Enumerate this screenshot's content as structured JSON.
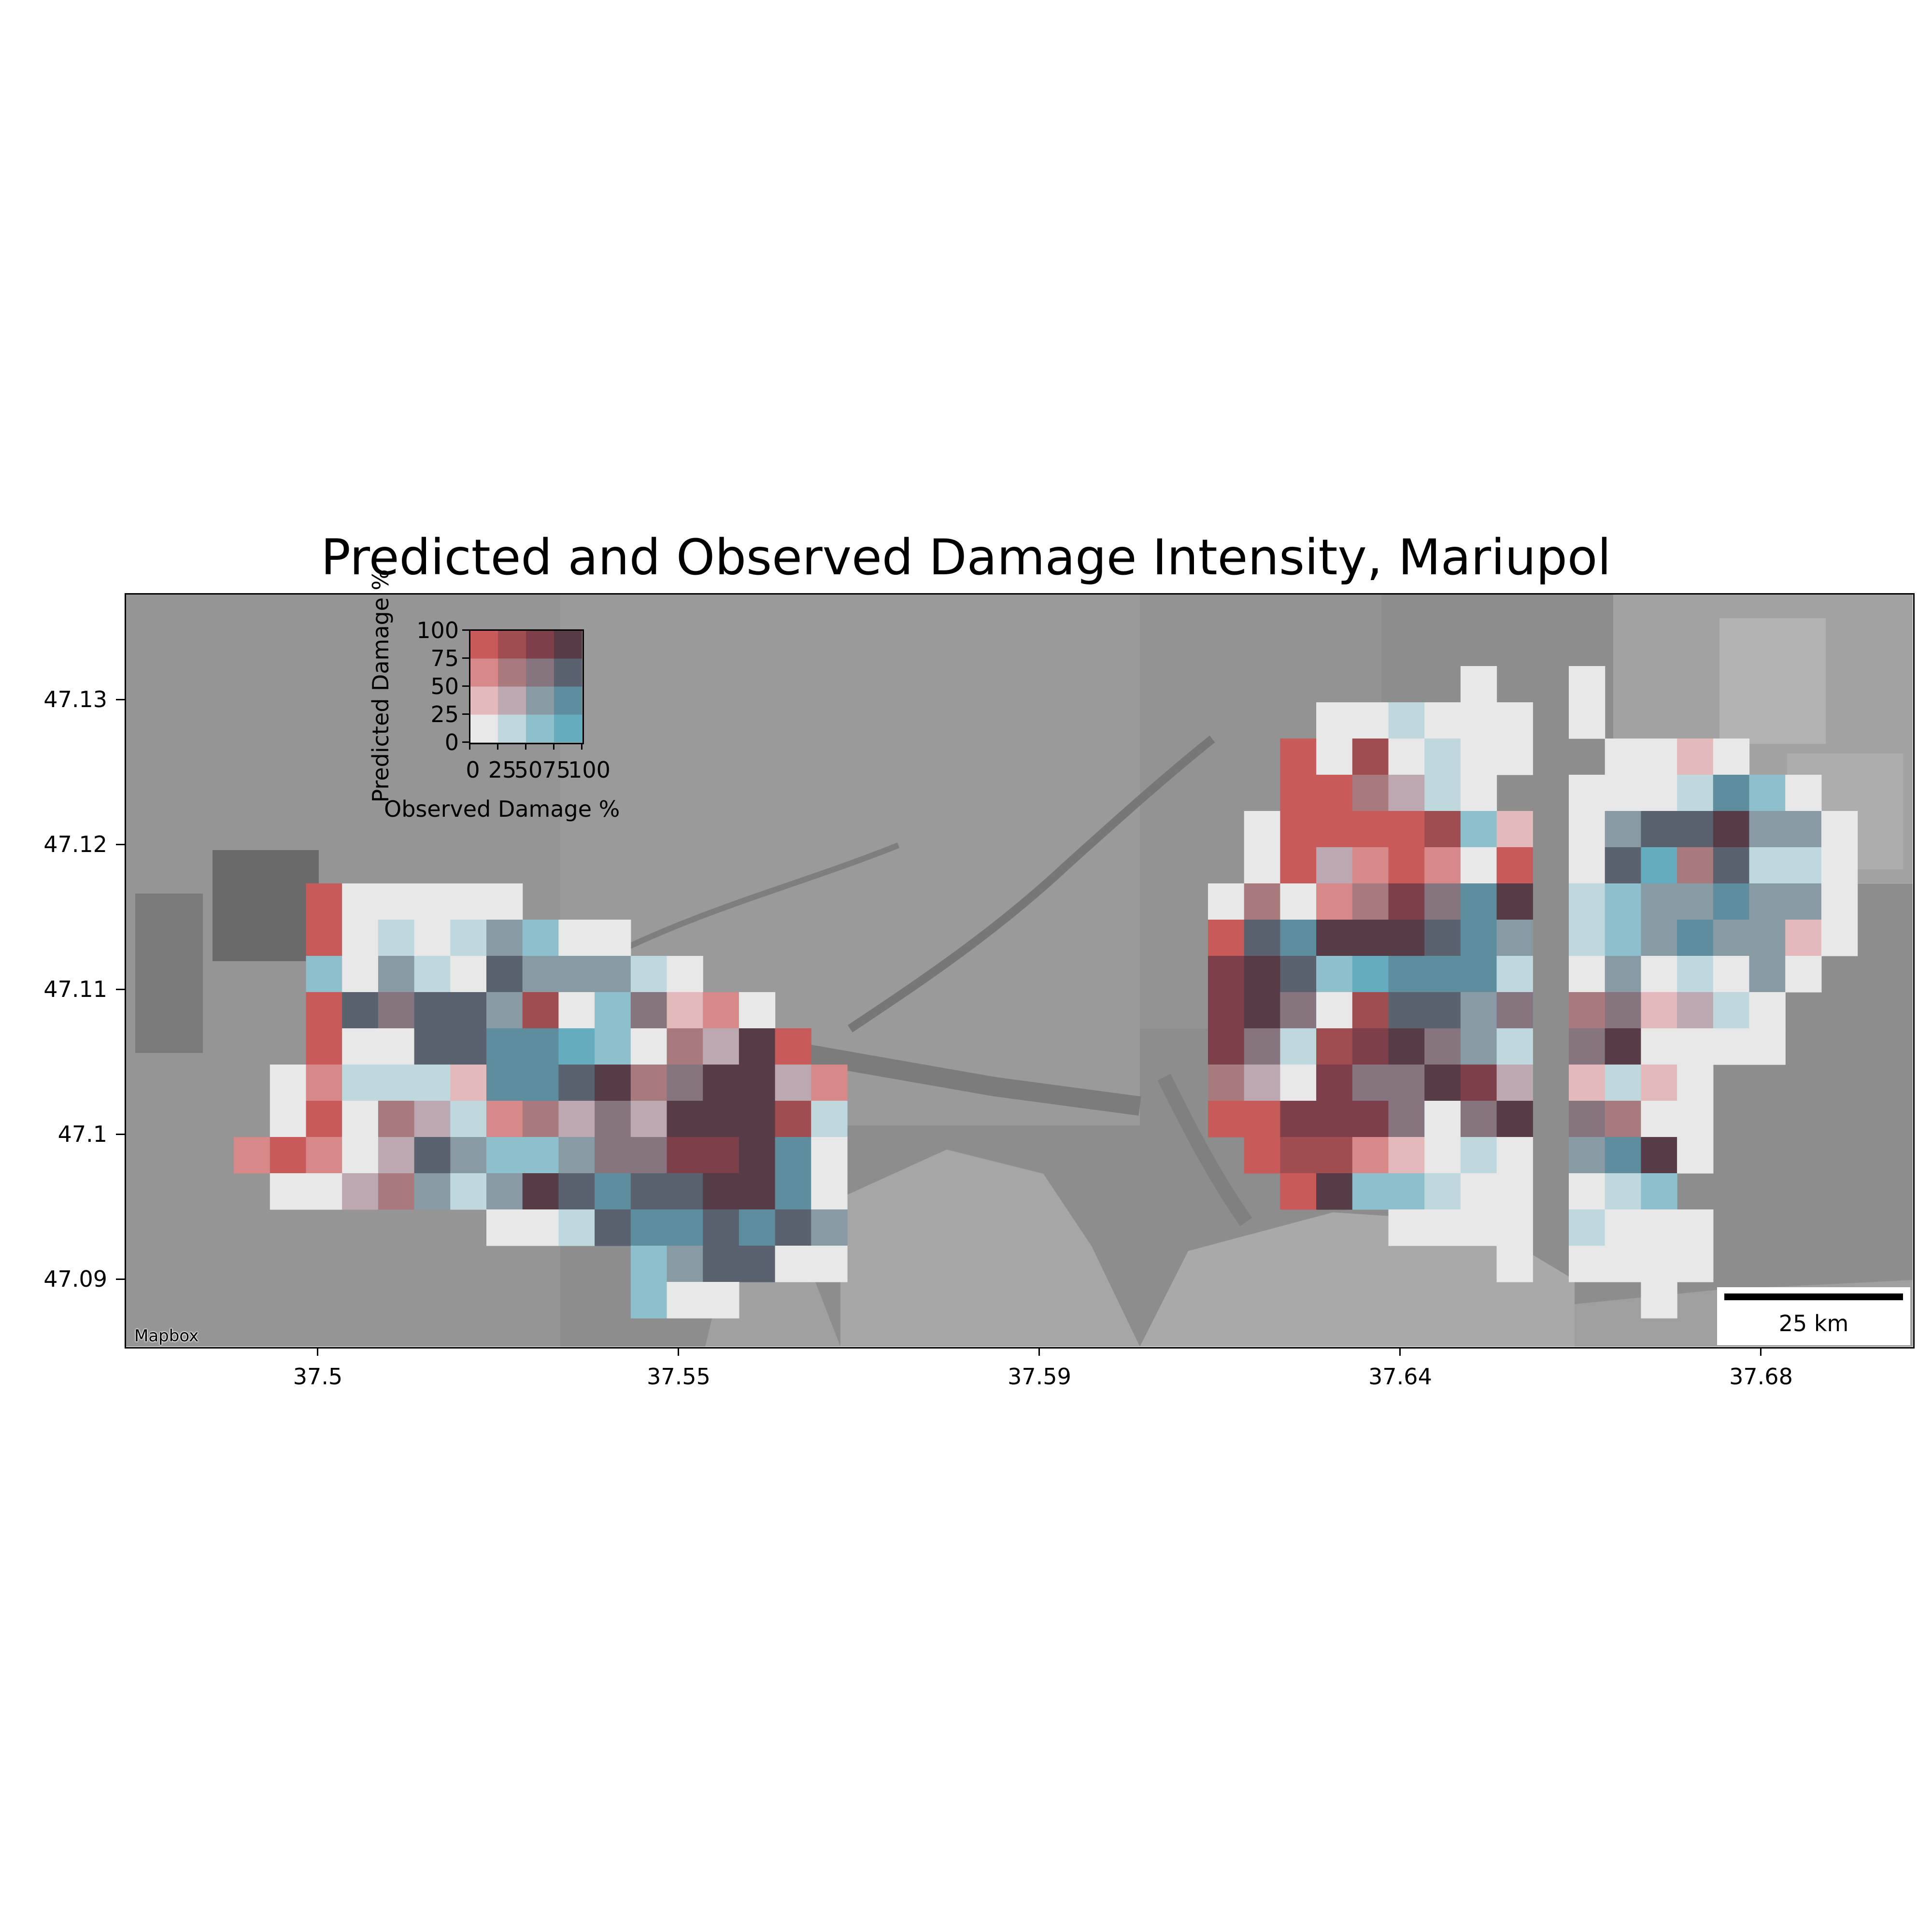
{
  "title": "Predicted and Observed Damage Intensity, Mariupol",
  "x_ticks": [
    "37.5",
    "37.55",
    "37.59",
    "37.64",
    "37.68"
  ],
  "y_ticks": [
    "47.13",
    "47.12",
    "47.11",
    "47.1",
    "47.09"
  ],
  "attribution": "Mapbox",
  "scale_bar": {
    "label": "25 km"
  },
  "legend": {
    "xlabel": "Observed Damage %",
    "ylabel": "Predicted Damage %",
    "x_ticks": [
      "0",
      "25",
      "50",
      "75",
      "100"
    ],
    "y_ticks": [
      "100",
      "75",
      "50",
      "25",
      "0"
    ]
  },
  "palette": [
    [
      "#e8e8e8",
      "#bfd8dd",
      "#8dc0cc",
      "#64acbe"
    ],
    [
      "#e4b9bb",
      "#bca8b1",
      "#889ba5",
      "#5e8d9e"
    ],
    [
      "#d7898a",
      "#a87a7e",
      "#86747e",
      "#5a6270"
    ],
    [
      "#c85a5a",
      "#a04d52",
      "#7d3f49",
      "#573b46"
    ]
  ],
  "grid_rows": [
    {
      "origin": 5,
      "row": 0,
      "cells": "......................................................0 ..........0......................................................."
    },
    {
      "origin": 5,
      "row": 1,
      "cells": "................................00100.0.........0..."
    },
    {
      "origin": 5,
      "row": 2,
      "cells": "..............................30c01000.0003.0...0"
    },
    {
      "origin": 5,
      "row": 3,
      "cells": "..............................33d5e6000.1810.."
    },
    {
      "origin": 5,
      "row": 4,
      "cells": "......................................................"
    }
  ],
  "cells": [
    [
      5,
      7,
      "c"
    ],
    [
      6,
      7,
      "0"
    ],
    [
      7,
      7,
      "0"
    ],
    [
      8,
      7,
      "0"
    ],
    [
      9,
      7,
      "0"
    ],
    [
      10,
      7,
      "0"
    ],
    [
      5,
      8,
      "c"
    ],
    [
      6,
      8,
      "0"
    ],
    [
      7,
      8,
      "1"
    ],
    [
      8,
      8,
      "0"
    ],
    [
      9,
      8,
      "1"
    ],
    [
      10,
      8,
      "6"
    ],
    [
      11,
      8,
      "2"
    ],
    [
      12,
      8,
      "0"
    ],
    [
      13,
      8,
      "0"
    ],
    [
      5,
      9,
      "2"
    ],
    [
      6,
      9,
      "0"
    ],
    [
      7,
      9,
      "6"
    ],
    [
      8,
      9,
      "1"
    ],
    [
      9,
      9,
      "0"
    ],
    [
      10,
      9,
      "b"
    ],
    [
      11,
      9,
      "6"
    ],
    [
      12,
      9,
      "6"
    ],
    [
      13,
      9,
      "6"
    ],
    [
      14,
      9,
      "1"
    ],
    [
      15,
      9,
      "0"
    ],
    [
      5,
      10,
      "c"
    ],
    [
      6,
      10,
      "b"
    ],
    [
      7,
      10,
      "a"
    ],
    [
      8,
      10,
      "b"
    ],
    [
      9,
      10,
      "b"
    ],
    [
      10,
      10,
      "6"
    ],
    [
      11,
      10,
      "d"
    ],
    [
      12,
      10,
      "0"
    ],
    [
      13,
      10,
      "2"
    ],
    [
      14,
      10,
      "a"
    ],
    [
      15,
      10,
      "4"
    ],
    [
      16,
      10,
      "8"
    ],
    [
      17,
      10,
      "0"
    ],
    [
      5,
      11,
      "c"
    ],
    [
      6,
      11,
      "0"
    ],
    [
      7,
      11,
      "0"
    ],
    [
      8,
      11,
      "b"
    ],
    [
      9,
      11,
      "b"
    ],
    [
      10,
      11,
      "7"
    ],
    [
      11,
      11,
      "7"
    ],
    [
      12,
      11,
      "3"
    ],
    [
      13,
      11,
      "2"
    ],
    [
      14,
      11,
      "0"
    ],
    [
      15,
      11,
      "9"
    ],
    [
      16,
      11,
      "5"
    ],
    [
      17,
      11,
      "f"
    ],
    [
      18,
      11,
      "c"
    ],
    [
      4,
      12,
      "0"
    ],
    [
      5,
      12,
      "8"
    ],
    [
      6,
      12,
      "1"
    ],
    [
      7,
      12,
      "1"
    ],
    [
      8,
      12,
      "1"
    ],
    [
      9,
      12,
      "4"
    ],
    [
      10,
      12,
      "7"
    ],
    [
      11,
      12,
      "7"
    ],
    [
      12,
      12,
      "b"
    ],
    [
      13,
      12,
      "f"
    ],
    [
      14,
      12,
      "9"
    ],
    [
      15,
      12,
      "a"
    ],
    [
      16,
      12,
      "f"
    ],
    [
      17,
      12,
      "f"
    ],
    [
      18,
      12,
      "5"
    ],
    [
      19,
      12,
      "8"
    ],
    [
      4,
      13,
      "0"
    ],
    [
      5,
      13,
      "c"
    ],
    [
      6,
      13,
      "0"
    ],
    [
      7,
      13,
      "9"
    ],
    [
      8,
      13,
      "5"
    ],
    [
      9,
      13,
      "1"
    ],
    [
      10,
      13,
      "8"
    ],
    [
      11,
      13,
      "9"
    ],
    [
      12,
      13,
      "5"
    ],
    [
      13,
      13,
      "a"
    ],
    [
      14,
      13,
      "5"
    ],
    [
      15,
      13,
      "f"
    ],
    [
      16,
      13,
      "f"
    ],
    [
      17,
      13,
      "f"
    ],
    [
      18,
      13,
      "d"
    ],
    [
      19,
      13,
      "1"
    ],
    [
      3,
      14,
      "8"
    ],
    [
      4,
      14,
      "c"
    ],
    [
      5,
      14,
      "8"
    ],
    [
      6,
      14,
      "0"
    ],
    [
      7,
      14,
      "5"
    ],
    [
      8,
      14,
      "b"
    ],
    [
      9,
      14,
      "6"
    ],
    [
      10,
      14,
      "2"
    ],
    [
      11,
      14,
      "2"
    ],
    [
      12,
      14,
      "6"
    ],
    [
      13,
      14,
      "a"
    ],
    [
      14,
      14,
      "a"
    ],
    [
      15,
      14,
      "e"
    ],
    [
      16,
      14,
      "e"
    ],
    [
      17,
      14,
      "f"
    ],
    [
      18,
      14,
      "7"
    ],
    [
      19,
      14,
      "0"
    ],
    [
      4,
      15,
      "0"
    ],
    [
      5,
      15,
      "0"
    ],
    [
      6,
      15,
      "5"
    ],
    [
      7,
      15,
      "9"
    ],
    [
      8,
      15,
      "6"
    ],
    [
      9,
      15,
      "1"
    ],
    [
      10,
      15,
      "6"
    ],
    [
      11,
      15,
      "f"
    ],
    [
      12,
      15,
      "b"
    ],
    [
      13,
      15,
      "7"
    ],
    [
      14,
      15,
      "b"
    ],
    [
      15,
      15,
      "b"
    ],
    [
      16,
      15,
      "f"
    ],
    [
      17,
      15,
      "f"
    ],
    [
      18,
      15,
      "7"
    ],
    [
      19,
      15,
      "0"
    ],
    [
      10,
      16,
      "0"
    ],
    [
      11,
      16,
      "0"
    ],
    [
      12,
      16,
      "1"
    ],
    [
      13,
      16,
      "b"
    ],
    [
      14,
      16,
      "7"
    ],
    [
      15,
      16,
      "7"
    ],
    [
      16,
      16,
      "b"
    ],
    [
      17,
      16,
      "7"
    ],
    [
      18,
      16,
      "b"
    ],
    [
      19,
      16,
      "6"
    ],
    [
      14,
      17,
      "2"
    ],
    [
      15,
      17,
      "6"
    ],
    [
      16,
      17,
      "b"
    ],
    [
      17,
      17,
      "b"
    ],
    [
      18,
      17,
      "0"
    ],
    [
      19,
      17,
      "0"
    ],
    [
      14,
      18,
      "2"
    ],
    [
      15,
      18,
      "0"
    ],
    [
      16,
      18,
      "0"
    ],
    [
      37,
      1,
      "0"
    ],
    [
      33,
      2,
      "0"
    ],
    [
      34,
      2,
      "0"
    ],
    [
      35,
      2,
      "1"
    ],
    [
      36,
      2,
      "0"
    ],
    [
      37,
      2,
      "0"
    ],
    [
      38,
      2,
      "0"
    ],
    [
      32,
      3,
      "c"
    ],
    [
      33,
      3,
      "0"
    ],
    [
      34,
      3,
      "d"
    ],
    [
      35,
      3,
      "0"
    ],
    [
      36,
      3,
      "1"
    ],
    [
      37,
      3,
      "0"
    ],
    [
      38,
      3,
      "0"
    ],
    [
      32,
      4,
      "c"
    ],
    [
      33,
      4,
      "c"
    ],
    [
      34,
      4,
      "9"
    ],
    [
      35,
      4,
      "5"
    ],
    [
      36,
      4,
      "1"
    ],
    [
      37,
      4,
      "0"
    ],
    [
      31,
      5,
      "0"
    ],
    [
      32,
      5,
      "c"
    ],
    [
      33,
      5,
      "c"
    ],
    [
      34,
      5,
      "c"
    ],
    [
      35,
      5,
      "c"
    ],
    [
      36,
      5,
      "d"
    ],
    [
      37,
      5,
      "2"
    ],
    [
      38,
      5,
      "4"
    ],
    [
      31,
      6,
      "0"
    ],
    [
      32,
      6,
      "c"
    ],
    [
      33,
      6,
      "5"
    ],
    [
      34,
      6,
      "8"
    ],
    [
      35,
      6,
      "c"
    ],
    [
      36,
      6,
      "8"
    ],
    [
      37,
      6,
      "0"
    ],
    [
      38,
      6,
      "c"
    ],
    [
      30,
      7,
      "0"
    ],
    [
      31,
      7,
      "9"
    ],
    [
      32,
      7,
      "0"
    ],
    [
      33,
      7,
      "8"
    ],
    [
      34,
      7,
      "9"
    ],
    [
      35,
      7,
      "e"
    ],
    [
      36,
      7,
      "a"
    ],
    [
      37,
      7,
      "7"
    ],
    [
      38,
      7,
      "f"
    ],
    [
      30,
      8,
      "c"
    ],
    [
      31,
      8,
      "b"
    ],
    [
      32,
      8,
      "7"
    ],
    [
      33,
      8,
      "f"
    ],
    [
      34,
      8,
      "f"
    ],
    [
      35,
      8,
      "f"
    ],
    [
      36,
      8,
      "b"
    ],
    [
      37,
      8,
      "7"
    ],
    [
      38,
      8,
      "6"
    ],
    [
      30,
      9,
      "e"
    ],
    [
      31,
      9,
      "f"
    ],
    [
      32,
      9,
      "b"
    ],
    [
      33,
      9,
      "2"
    ],
    [
      34,
      9,
      "3"
    ],
    [
      35,
      9,
      "7"
    ],
    [
      36,
      9,
      "7"
    ],
    [
      37,
      9,
      "7"
    ],
    [
      38,
      9,
      "1"
    ],
    [
      30,
      10,
      "e"
    ],
    [
      31,
      10,
      "f"
    ],
    [
      32,
      10,
      "a"
    ],
    [
      33,
      10,
      "0"
    ],
    [
      34,
      10,
      "d"
    ],
    [
      35,
      10,
      "b"
    ],
    [
      36,
      10,
      "b"
    ],
    [
      37,
      10,
      "6"
    ],
    [
      38,
      10,
      "a"
    ],
    [
      30,
      11,
      "e"
    ],
    [
      31,
      11,
      "a"
    ],
    [
      32,
      11,
      "1"
    ],
    [
      33,
      11,
      "d"
    ],
    [
      34,
      11,
      "e"
    ],
    [
      35,
      11,
      "f"
    ],
    [
      36,
      11,
      "a"
    ],
    [
      37,
      11,
      "6"
    ],
    [
      38,
      11,
      "1"
    ],
    [
      30,
      12,
      "9"
    ],
    [
      31,
      12,
      "5"
    ],
    [
      32,
      12,
      "0"
    ],
    [
      33,
      12,
      "e"
    ],
    [
      34,
      12,
      "a"
    ],
    [
      35,
      12,
      "a"
    ],
    [
      36,
      12,
      "f"
    ],
    [
      37,
      12,
      "e"
    ],
    [
      38,
      12,
      "5"
    ],
    [
      30,
      13,
      "c"
    ],
    [
      31,
      13,
      "c"
    ],
    [
      32,
      13,
      "e"
    ],
    [
      33,
      13,
      "e"
    ],
    [
      34,
      13,
      "e"
    ],
    [
      35,
      13,
      "a"
    ],
    [
      36,
      13,
      "0"
    ],
    [
      37,
      13,
      "a"
    ],
    [
      38,
      13,
      "f"
    ],
    [
      31,
      14,
      "c"
    ],
    [
      32,
      14,
      "d"
    ],
    [
      33,
      14,
      "d"
    ],
    [
      34,
      14,
      "8"
    ],
    [
      35,
      14,
      "4"
    ],
    [
      36,
      14,
      "0"
    ],
    [
      37,
      14,
      "1"
    ],
    [
      38,
      14,
      "0"
    ],
    [
      32,
      15,
      "c"
    ],
    [
      33,
      15,
      "f"
    ],
    [
      34,
      15,
      "2"
    ],
    [
      35,
      15,
      "2"
    ],
    [
      36,
      15,
      "1"
    ],
    [
      37,
      15,
      "0"
    ],
    [
      38,
      15,
      "0"
    ],
    [
      35,
      16,
      "0"
    ],
    [
      36,
      16,
      "0"
    ],
    [
      37,
      16,
      "0"
    ],
    [
      38,
      16,
      "0"
    ],
    [
      38,
      17,
      "0"
    ],
    [
      40,
      1,
      "0"
    ],
    [
      40,
      2,
      "0"
    ],
    [
      41,
      3,
      "0"
    ],
    [
      42,
      3,
      "0"
    ],
    [
      43,
      3,
      "4"
    ],
    [
      44,
      3,
      "0"
    ],
    [
      40,
      4,
      "0"
    ],
    [
      41,
      4,
      "0"
    ],
    [
      42,
      4,
      "0"
    ],
    [
      43,
      4,
      "1"
    ],
    [
      44,
      4,
      "7"
    ],
    [
      45,
      4,
      "2"
    ],
    [
      46,
      4,
      "0"
    ],
    [
      40,
      5,
      "0"
    ],
    [
      41,
      5,
      "6"
    ],
    [
      42,
      5,
      "b"
    ],
    [
      43,
      5,
      "b"
    ],
    [
      44,
      5,
      "f"
    ],
    [
      45,
      5,
      "6"
    ],
    [
      46,
      5,
      "6"
    ],
    [
      47,
      5,
      "0"
    ],
    [
      40,
      6,
      "0"
    ],
    [
      41,
      6,
      "b"
    ],
    [
      42,
      6,
      "3"
    ],
    [
      43,
      6,
      "9"
    ],
    [
      44,
      6,
      "b"
    ],
    [
      45,
      6,
      "1"
    ],
    [
      46,
      6,
      "1"
    ],
    [
      47,
      6,
      "0"
    ],
    [
      40,
      7,
      "1"
    ],
    [
      41,
      7,
      "2"
    ],
    [
      42,
      7,
      "6"
    ],
    [
      43,
      7,
      "6"
    ],
    [
      44,
      7,
      "7"
    ],
    [
      45,
      7,
      "6"
    ],
    [
      46,
      7,
      "6"
    ],
    [
      47,
      7,
      "0"
    ],
    [
      40,
      8,
      "1"
    ],
    [
      41,
      8,
      "2"
    ],
    [
      42,
      8,
      "6"
    ],
    [
      43,
      8,
      "7"
    ],
    [
      44,
      8,
      "6"
    ],
    [
      45,
      8,
      "6"
    ],
    [
      46,
      8,
      "4"
    ],
    [
      47,
      8,
      "0"
    ],
    [
      40,
      9,
      "0"
    ],
    [
      41,
      9,
      "6"
    ],
    [
      42,
      9,
      "0"
    ],
    [
      43,
      9,
      "1"
    ],
    [
      44,
      9,
      "0"
    ],
    [
      45,
      9,
      "6"
    ],
    [
      46,
      9,
      "0"
    ],
    [
      40,
      10,
      "9"
    ],
    [
      41,
      10,
      "a"
    ],
    [
      42,
      10,
      "4"
    ],
    [
      43,
      10,
      "5"
    ],
    [
      44,
      10,
      "1"
    ],
    [
      45,
      10,
      "0"
    ],
    [
      40,
      11,
      "a"
    ],
    [
      41,
      11,
      "f"
    ],
    [
      42,
      11,
      "0"
    ],
    [
      43,
      11,
      "0"
    ],
    [
      44,
      11,
      "0"
    ],
    [
      45,
      11,
      "0"
    ],
    [
      40,
      12,
      "4"
    ],
    [
      41,
      12,
      "1"
    ],
    [
      42,
      12,
      "4"
    ],
    [
      43,
      12,
      "0"
    ],
    [
      40,
      13,
      "a"
    ],
    [
      41,
      13,
      "9"
    ],
    [
      42,
      13,
      "0"
    ],
    [
      43,
      13,
      "0"
    ],
    [
      40,
      14,
      "6"
    ],
    [
      41,
      14,
      "7"
    ],
    [
      42,
      14,
      "f"
    ],
    [
      43,
      14,
      "0"
    ],
    [
      40,
      15,
      "0"
    ],
    [
      41,
      15,
      "1"
    ],
    [
      42,
      15,
      "2"
    ],
    [
      40,
      16,
      "1"
    ],
    [
      41,
      16,
      "0"
    ],
    [
      42,
      16,
      "0"
    ],
    [
      43,
      16,
      "0"
    ],
    [
      40,
      17,
      "0"
    ],
    [
      41,
      17,
      "0"
    ],
    [
      42,
      17,
      "0"
    ],
    [
      43,
      17,
      "0"
    ],
    [
      42,
      18,
      "0"
    ]
  ]
}
